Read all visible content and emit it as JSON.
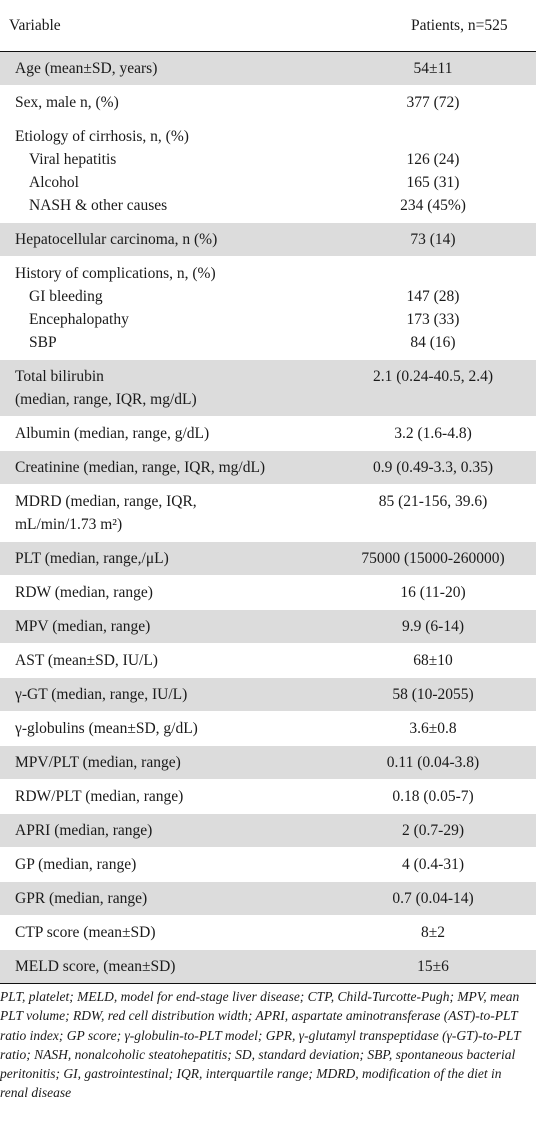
{
  "header": {
    "variable": "Variable",
    "patients": "Patients, n=525"
  },
  "rows": [
    {
      "label": [
        "Age (mean±SD, years)"
      ],
      "value": [
        "54±11"
      ],
      "shade": true
    },
    {
      "label": [
        "Sex, male n, (%)"
      ],
      "value": [
        "377 (72)"
      ],
      "shade": false
    },
    {
      "label": [
        "Etiology of cirrhosis, n, (%)"
      ],
      "subs": [
        "Viral hepatitis",
        "Alcohol",
        "NASH & other causes"
      ],
      "value": [
        "",
        "126 (24)",
        "165 (31)",
        "234 (45%)"
      ],
      "shade": false
    },
    {
      "label": [
        "Hepatocellular carcinoma, n (%)"
      ],
      "value": [
        "73 (14)"
      ],
      "shade": true
    },
    {
      "label": [
        "History of complications, n, (%)"
      ],
      "subs": [
        "GI bleeding",
        "Encephalopathy",
        "SBP"
      ],
      "value": [
        "",
        "147 (28)",
        "173 (33)",
        "84 (16)"
      ],
      "shade": false
    },
    {
      "label": [
        "Total bilirubin",
        "(median, range, IQR, mg/dL)"
      ],
      "value": [
        "2.1 (0.24-40.5, 2.4)"
      ],
      "shade": true
    },
    {
      "label": [
        "Albumin (median, range, g/dL)"
      ],
      "value": [
        "3.2 (1.6-4.8)"
      ],
      "shade": false
    },
    {
      "label": [
        "Creatinine (median, range, IQR, mg/dL)"
      ],
      "value": [
        "0.9 (0.49-3.3, 0.35)"
      ],
      "shade": true
    },
    {
      "label": [
        "MDRD (median, range, IQR,",
        "mL/min/1.73 m²)"
      ],
      "value": [
        "85 (21-156, 39.6)"
      ],
      "shade": false
    },
    {
      "label": [
        "PLT (median, range,/μL)"
      ],
      "value": [
        "75000 (15000-260000)"
      ],
      "shade": true
    },
    {
      "label": [
        "RDW (median, range)"
      ],
      "value": [
        "16 (11-20)"
      ],
      "shade": false
    },
    {
      "label": [
        "MPV (median, range)"
      ],
      "value": [
        "9.9 (6-14)"
      ],
      "shade": true
    },
    {
      "label": [
        "AST (mean±SD, IU/L)"
      ],
      "value": [
        "68±10"
      ],
      "shade": false
    },
    {
      "label": [
        "γ-GT (median, range, IU/L)"
      ],
      "value": [
        "58 (10-2055)"
      ],
      "shade": true
    },
    {
      "label": [
        "γ-globulins (mean±SD, g/dL)"
      ],
      "value": [
        "3.6±0.8"
      ],
      "shade": false
    },
    {
      "label": [
        "MPV/PLT (median, range)"
      ],
      "value": [
        "0.11 (0.04-3.8)"
      ],
      "shade": true
    },
    {
      "label": [
        "RDW/PLT (median, range)"
      ],
      "value": [
        "0.18 (0.05-7)"
      ],
      "shade": false
    },
    {
      "label": [
        "APRI (median, range)"
      ],
      "value": [
        "2 (0.7-29)"
      ],
      "shade": true
    },
    {
      "label": [
        "GP (median, range)"
      ],
      "value": [
        "4 (0.4-31)"
      ],
      "shade": false
    },
    {
      "label": [
        "GPR (median, range)"
      ],
      "value": [
        "0.7 (0.04-14)"
      ],
      "shade": true
    },
    {
      "label": [
        "CTP score (mean±SD)"
      ],
      "value": [
        "8±2"
      ],
      "shade": false
    },
    {
      "label": [
        "MELD score, (mean±SD)"
      ],
      "value": [
        "15±6"
      ],
      "shade": true
    }
  ],
  "footnote": "PLT, platelet; MELD, model for end-stage liver disease; CTP, Child-Turcotte-Pugh; MPV, mean PLT volume; RDW, red cell distribution width; APRI, aspartate aminotransferase (AST)-to-PLT ratio index; GP score; γ-globulin-to-PLT model; GPR, γ-glutamyl transpeptidase (γ-GT)-to-PLT ratio; NASH, nonalcoholic steatohepatitis; SD, standard deviation; SBP, spontaneous bacterial peritonitis; GI, gastrointestinal; IQR, interquartile range; MDRD, modification of the diet in renal disease"
}
